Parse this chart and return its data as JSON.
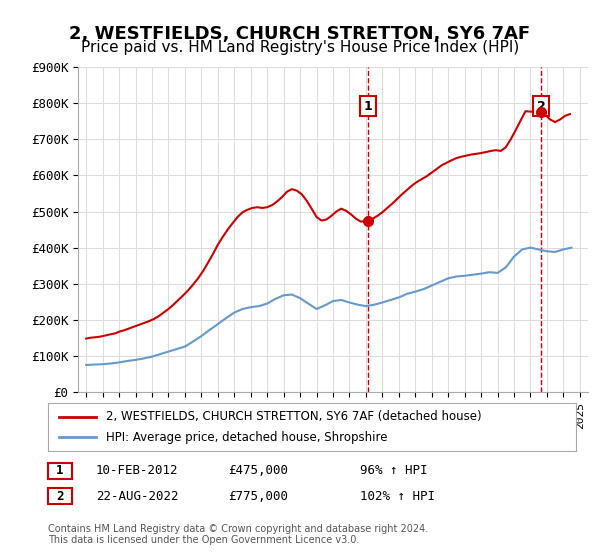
{
  "title": "2, WESTFIELDS, CHURCH STRETTON, SY6 7AF",
  "subtitle": "Price paid vs. HM Land Registry's House Price Index (HPI)",
  "title_fontsize": 13,
  "subtitle_fontsize": 11,
  "hpi_years": [
    1995,
    1995.5,
    1996,
    1996.5,
    1997,
    1997.5,
    1998,
    1998.5,
    1999,
    1999.5,
    2000,
    2000.5,
    2001,
    2001.5,
    2002,
    2002.5,
    2003,
    2003.5,
    2004,
    2004.5,
    2005,
    2005.5,
    2006,
    2006.5,
    2007,
    2007.5,
    2008,
    2008.5,
    2009,
    2009.5,
    2010,
    2010.5,
    2011,
    2011.5,
    2012,
    2012.5,
    2013,
    2013.5,
    2014,
    2014.5,
    2015,
    2015.5,
    2016,
    2016.5,
    2017,
    2017.5,
    2018,
    2018.5,
    2019,
    2019.5,
    2020,
    2020.5,
    2021,
    2021.5,
    2022,
    2022.5,
    2023,
    2023.5,
    2024,
    2024.5
  ],
  "hpi_values": [
    75000,
    76000,
    77000,
    79000,
    82000,
    86000,
    89000,
    93000,
    98000,
    105000,
    112000,
    119000,
    126000,
    140000,
    155000,
    172000,
    188000,
    205000,
    220000,
    230000,
    235000,
    238000,
    245000,
    258000,
    268000,
    270000,
    260000,
    245000,
    230000,
    240000,
    252000,
    255000,
    248000,
    242000,
    238000,
    242000,
    248000,
    255000,
    262000,
    272000,
    278000,
    285000,
    295000,
    305000,
    315000,
    320000,
    322000,
    325000,
    328000,
    332000,
    330000,
    345000,
    375000,
    395000,
    400000,
    395000,
    390000,
    388000,
    395000,
    400000
  ],
  "property_years": [
    1995.0,
    1995.2,
    1995.4,
    1995.6,
    1995.8,
    1996.0,
    1996.2,
    1996.5,
    1996.8,
    1997.0,
    1997.3,
    1997.6,
    1997.9,
    1998.2,
    1998.5,
    1998.8,
    1999.1,
    1999.4,
    1999.7,
    2000.0,
    2000.3,
    2000.6,
    2000.9,
    2001.2,
    2001.5,
    2001.8,
    2002.1,
    2002.4,
    2002.7,
    2003.0,
    2003.3,
    2003.6,
    2003.9,
    2004.2,
    2004.5,
    2004.8,
    2005.1,
    2005.4,
    2005.7,
    2006.0,
    2006.3,
    2006.6,
    2006.9,
    2007.2,
    2007.5,
    2007.8,
    2008.1,
    2008.4,
    2008.7,
    2009.0,
    2009.3,
    2009.6,
    2009.9,
    2010.2,
    2010.5,
    2010.8,
    2011.1,
    2011.4,
    2011.7,
    2012.08,
    2012.4,
    2012.7,
    2013.0,
    2013.3,
    2013.6,
    2013.9,
    2014.2,
    2014.5,
    2014.8,
    2015.1,
    2015.4,
    2015.7,
    2016.0,
    2016.3,
    2016.6,
    2016.9,
    2017.2,
    2017.5,
    2017.8,
    2018.1,
    2018.4,
    2018.7,
    2019.0,
    2019.3,
    2019.6,
    2019.9,
    2020.2,
    2020.5,
    2020.8,
    2021.1,
    2021.4,
    2021.7,
    2022.64,
    2022.9,
    2023.2,
    2023.5,
    2023.8,
    2024.1,
    2024.4
  ],
  "property_values": [
    148000,
    150000,
    151000,
    152000,
    153000,
    155000,
    157000,
    160000,
    163000,
    167000,
    171000,
    176000,
    181000,
    186000,
    191000,
    196000,
    202000,
    210000,
    220000,
    230000,
    242000,
    255000,
    268000,
    282000,
    298000,
    315000,
    335000,
    358000,
    382000,
    408000,
    430000,
    450000,
    468000,
    485000,
    498000,
    505000,
    510000,
    512000,
    510000,
    512000,
    518000,
    528000,
    540000,
    555000,
    562000,
    558000,
    548000,
    530000,
    508000,
    485000,
    475000,
    478000,
    488000,
    500000,
    508000,
    502000,
    492000,
    480000,
    472000,
    475000,
    480000,
    488000,
    498000,
    510000,
    522000,
    535000,
    548000,
    560000,
    572000,
    582000,
    590000,
    598000,
    608000,
    618000,
    628000,
    635000,
    642000,
    648000,
    652000,
    655000,
    658000,
    660000,
    662000,
    665000,
    668000,
    670000,
    668000,
    678000,
    700000,
    725000,
    752000,
    778000,
    775000,
    768000,
    755000,
    748000,
    755000,
    765000,
    770000
  ],
  "sale1_year": 2012.11,
  "sale1_price": 475000,
  "sale1_label": "1",
  "sale1_date": "10-FEB-2012",
  "sale1_pct": "96%",
  "sale2_year": 2022.64,
  "sale2_price": 775000,
  "sale2_label": "2",
  "sale2_date": "22-AUG-2022",
  "sale2_pct": "102%",
  "ylim": [
    0,
    900000
  ],
  "yticks": [
    0,
    100000,
    200000,
    300000,
    400000,
    500000,
    600000,
    700000,
    800000,
    900000
  ],
  "ytick_labels": [
    "£0",
    "£100K",
    "£200K",
    "£300K",
    "£400K",
    "£500K",
    "£600K",
    "£700K",
    "£800K",
    "£900K"
  ],
  "xlim": [
    1994.5,
    2025.5
  ],
  "xticks": [
    1995,
    1996,
    1997,
    1998,
    1999,
    2000,
    2001,
    2002,
    2003,
    2004,
    2005,
    2006,
    2007,
    2008,
    2009,
    2010,
    2011,
    2012,
    2013,
    2014,
    2015,
    2016,
    2017,
    2018,
    2019,
    2020,
    2021,
    2022,
    2023,
    2024,
    2025
  ],
  "property_line_color": "#cc0000",
  "hpi_line_color": "#6699cc",
  "sale_marker_color": "#cc0000",
  "sale_vline_color": "#cc0000",
  "annotation_box_color": "#cc0000",
  "legend_property_label": "2, WESTFIELDS, CHURCH STRETTON, SY6 7AF (detached house)",
  "legend_hpi_label": "HPI: Average price, detached house, Shropshire",
  "annotation1_text": "1  10-FEB-2012      £475,000        96% ↑ HPI",
  "annotation2_text": "2  22-AUG-2022      £775,000        102% ↑ HPI",
  "footer": "Contains HM Land Registry data © Crown copyright and database right 2024.\nThis data is licensed under the Open Government Licence v3.0.",
  "bg_color": "#ffffff",
  "grid_color": "#dddddd"
}
